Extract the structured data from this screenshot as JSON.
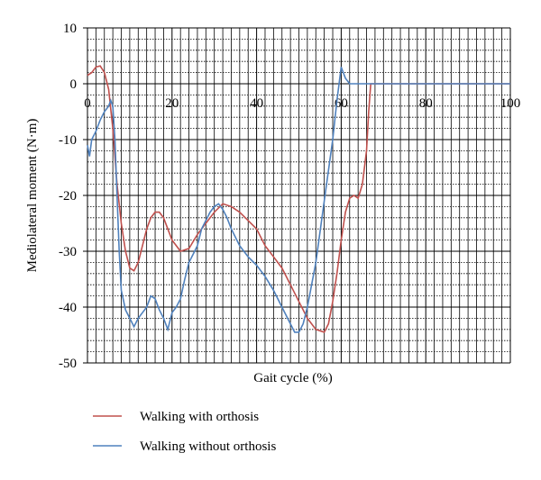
{
  "chart_data": {
    "type": "line",
    "xlabel": "Gait cycle (%)",
    "ylabel": "Mediolateral moment (N·m)",
    "xlim": [
      0,
      100
    ],
    "ylim": [
      -50,
      10
    ],
    "xticks": [
      0,
      20,
      40,
      60,
      80,
      100
    ],
    "yticks": [
      -50,
      -40,
      -30,
      -20,
      -10,
      0,
      10
    ],
    "x_minor_ticks": [
      2,
      4,
      6,
      8,
      10,
      12,
      14,
      16,
      18,
      22,
      24,
      26,
      28,
      30,
      32,
      34,
      36,
      38,
      42,
      44,
      46,
      48,
      50,
      52,
      54,
      56,
      58,
      62,
      64,
      66,
      68,
      70,
      72,
      74,
      76,
      78,
      82,
      84,
      86,
      88,
      90,
      92,
      94,
      96,
      98
    ],
    "y_minor_ticks": [
      -48,
      -46,
      -44,
      -42,
      -38,
      -36,
      -34,
      -32,
      -28,
      -26,
      -24,
      -22,
      -18,
      -16,
      -14,
      -12,
      -8,
      -6,
      -4,
      -2,
      2,
      4,
      6,
      8
    ],
    "grid": true,
    "series": [
      {
        "name": "Walking with orthosis",
        "color": "#c0504d",
        "x": [
          0,
          1,
          2,
          3,
          4,
          5,
          6,
          7,
          8,
          9,
          10,
          11,
          12,
          13,
          14,
          15,
          16,
          17,
          18,
          19,
          20,
          22,
          24,
          26,
          28,
          30,
          32,
          34,
          36,
          38,
          40,
          42,
          44,
          46,
          48,
          50,
          52,
          54,
          56,
          57,
          58,
          59,
          60,
          61,
          62,
          63,
          64,
          65,
          66,
          66.5,
          67,
          70,
          100
        ],
        "values": [
          1.5,
          2,
          3,
          3.2,
          2,
          -1,
          -8,
          -18,
          -25,
          -30,
          -33,
          -33.5,
          -32,
          -29,
          -26,
          -24,
          -23,
          -23,
          -24,
          -26,
          -28,
          -30,
          -29.5,
          -27,
          -25,
          -23,
          -21.5,
          -22,
          -23,
          -24.5,
          -26,
          -29,
          -31,
          -33,
          -36,
          -39,
          -42,
          -44,
          -44.5,
          -43,
          -39,
          -34,
          -28,
          -23,
          -20.5,
          -20,
          -20.5,
          -18,
          -12,
          -5,
          0,
          0,
          0
        ]
      },
      {
        "name": "Walking without orthosis",
        "color": "#4f81bd",
        "x": [
          0,
          0.5,
          1,
          2,
          3,
          4,
          5,
          5.5,
          6,
          6.5,
          7,
          7.5,
          8,
          9,
          10,
          11,
          12,
          13,
          14,
          15,
          16,
          17,
          18,
          19,
          20,
          21,
          22,
          23,
          24,
          25,
          26,
          27,
          28,
          29,
          30,
          31,
          32,
          33,
          34,
          36,
          38,
          40,
          42,
          44,
          46,
          48,
          49,
          50,
          51,
          52,
          54,
          56,
          58,
          59,
          60,
          60.5,
          61,
          62,
          100
        ],
        "values": [
          -11,
          -13,
          -10,
          -8.5,
          -6.5,
          -5,
          -4,
          -3,
          -4,
          -10,
          -20,
          -30,
          -37,
          -40.5,
          -42,
          -43.5,
          -42,
          -41,
          -40,
          -38,
          -38.5,
          -40.5,
          -42,
          -44,
          -41,
          -40,
          -38.5,
          -35,
          -32,
          -30.5,
          -29,
          -26,
          -24.5,
          -23,
          -22,
          -21.5,
          -22.5,
          -24,
          -26,
          -29,
          -31,
          -32.5,
          -34.5,
          -37,
          -40,
          -43,
          -44.5,
          -44.5,
          -43,
          -40,
          -32,
          -21,
          -10,
          -3,
          3,
          2,
          1,
          0,
          0
        ]
      }
    ]
  }
}
